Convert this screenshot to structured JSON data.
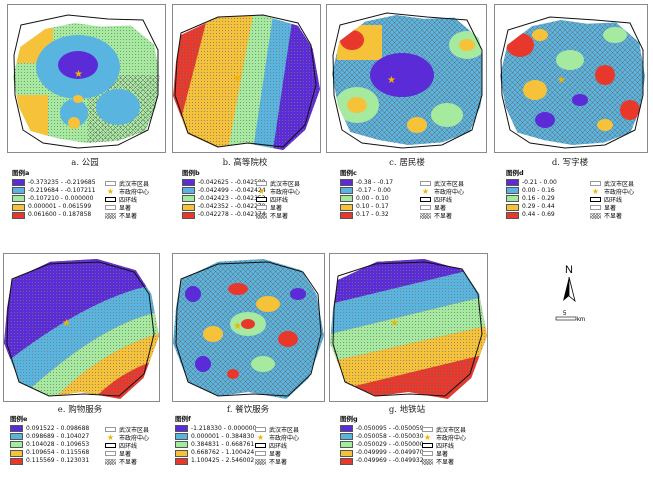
{
  "common_legend": {
    "district": "武汉市区县",
    "center": "市政府中心",
    "ring": "四环线",
    "sig": "显著",
    "nonsig": "不显著"
  },
  "colors": {
    "c1": "#5a2bd6",
    "c2": "#5ab4e0",
    "c3": "#a6eaa0",
    "c4": "#f5c23a",
    "c5": "#e8382c"
  },
  "panels": [
    {
      "caption": "a. 公园",
      "legend_title": "图例a",
      "classes": [
        "-0.373235 - -0.219685",
        "-0.219684 - -0.107211",
        "-0.107210 - 0.000000",
        "0.000001 - 0.061599",
        "0.061600 - 0.187858"
      ]
    },
    {
      "caption": "b. 高等院校",
      "legend_title": "图例b",
      "classes": [
        "-0.042625 - -0.042500",
        "-0.042499 - -0.042424",
        "-0.042423 - -0.042353",
        "-0.042352 - -0.042279",
        "-0.042278 - -0.042174"
      ]
    },
    {
      "caption": "c. 居民楼",
      "legend_title": "图例c",
      "classes": [
        "-0.38 - -0.17",
        "-0.17 - 0.00",
        "0.00 - 0.10",
        "0.10 - 0.17",
        "0.17 - 0.32"
      ]
    },
    {
      "caption": "d. 写字楼",
      "legend_title": "图例d",
      "classes": [
        "-0.21 - 0.00",
        "0.00 - 0.16",
        "0.16 - 0.29",
        "0.29 - 0.44",
        "0.44 - 0.69"
      ]
    },
    {
      "caption": "e. 购物服务",
      "legend_title": "图例e",
      "classes": [
        "0.091522 - 0.098688",
        "0.098689 - 0.104027",
        "0.104028 - 0.109653",
        "0.109654 - 0.115568",
        "0.115569 - 0.123031"
      ]
    },
    {
      "caption": "f. 餐饮服务",
      "legend_title": "图例f",
      "classes": [
        "-1.218330 - 0.000000",
        "0.000001 - 0.384830",
        "0.384831 - 0.668761",
        "0.668762 - 1.100424",
        "1.100425 - 2.546002"
      ]
    },
    {
      "caption": "g. 地铁站",
      "legend_title": "图例g",
      "classes": [
        "-0.050095 - -0.050059",
        "-0.050058 - -0.050030",
        "-0.050029 - -0.050000",
        "-0.049999 - -0.049970",
        "-0.049969 - -0.049932"
      ]
    }
  ],
  "north_arrow": {
    "letter": "N",
    "scale_value": "5",
    "scale_unit": "km"
  }
}
